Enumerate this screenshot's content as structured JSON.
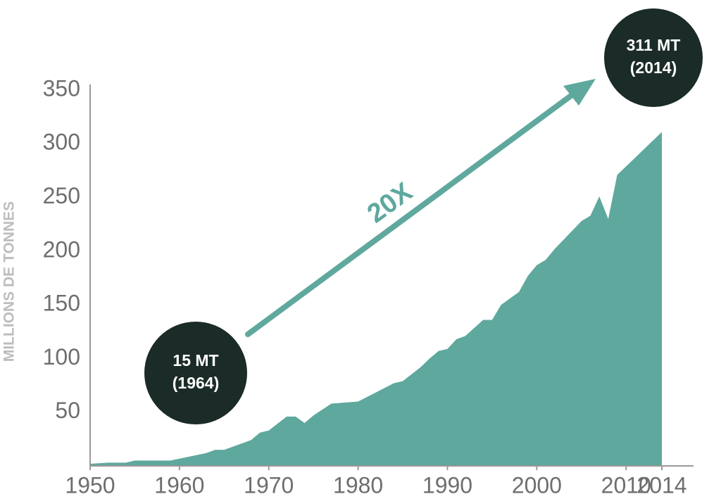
{
  "chart_data": {
    "type": "area",
    "y_label": "MILLIONS DE TONNES",
    "x": [
      1950,
      1952,
      1954,
      1955,
      1959,
      1963,
      1964,
      1965,
      1968,
      1969,
      1970,
      1972,
      1973,
      1974,
      1975,
      1977,
      1980,
      1984,
      1985,
      1987,
      1988,
      1989,
      1990,
      1991,
      1992,
      1994,
      1995,
      1996,
      1998,
      1999,
      2000,
      2001,
      2002,
      2005,
      2006,
      2007,
      2008,
      2009,
      2014
    ],
    "values": [
      2,
      3,
      3,
      5,
      5,
      12,
      15,
      15,
      24,
      31,
      33,
      46,
      46,
      40,
      47,
      58,
      60,
      77,
      79,
      92,
      100,
      107,
      109,
      118,
      121,
      136,
      136,
      150,
      162,
      177,
      187,
      192,
      202,
      228,
      233,
      251,
      230,
      271,
      311
    ],
    "color": "#5fa89d",
    "xlim": [
      1950,
      2014
    ],
    "xticks": [
      1950,
      1960,
      1970,
      1980,
      1990,
      2000,
      2010,
      2014
    ],
    "ylim": [
      0,
      350
    ],
    "yticks": [
      50,
      100,
      150,
      200,
      250,
      300,
      350
    ],
    "grid": false,
    "annotations": [
      {
        "lines": [
          "15 MT",
          "(1964)"
        ]
      },
      {
        "lines": [
          "311 MT",
          "(2014)"
        ]
      },
      {
        "text": "20X"
      }
    ]
  }
}
